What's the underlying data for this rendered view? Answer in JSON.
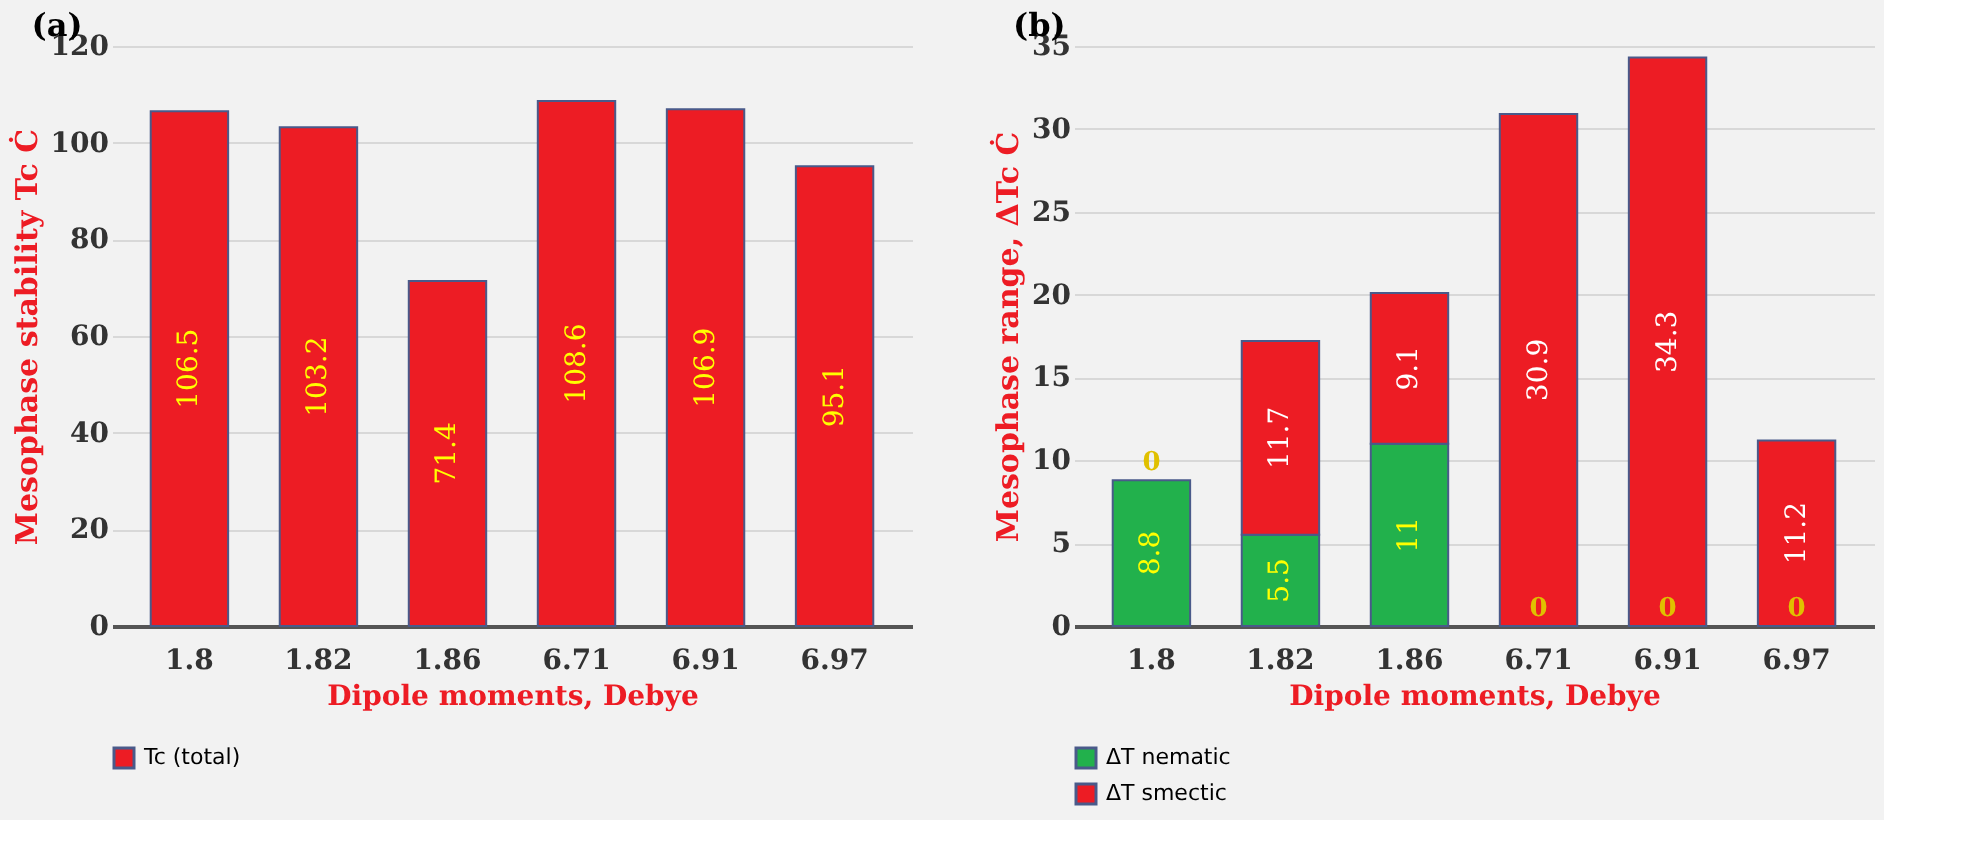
{
  "chart_data": [
    {
      "type": "bar",
      "title": "(a)",
      "xlabel": "Dipole moments,  Debye",
      "ylabel": "Mesophase stability Tc Ċ",
      "categories": [
        "1.8",
        "1.82",
        "1.86",
        "6.71",
        "6.91",
        "6.97"
      ],
      "series": [
        {
          "name": "Tc (total)",
          "color": "#ed1c24",
          "values": [
            106.5,
            103.2,
            71.4,
            108.6,
            106.9,
            95.1
          ]
        }
      ],
      "ylim": [
        0,
        120
      ],
      "yticks": [
        0,
        20,
        40,
        60,
        80,
        100,
        120
      ],
      "grid": "y",
      "legend": "bottom",
      "data_labels": true
    },
    {
      "type": "bar",
      "title": "(b)",
      "xlabel": "Dipole moments,  Debye",
      "ylabel": "Mesophase range, ΔTc Ċ",
      "categories": [
        "1.8",
        "1.82",
        "1.86",
        "6.71",
        "6.91",
        "6.97"
      ],
      "stacked": true,
      "series": [
        {
          "name": "ΔT nematic",
          "color": "#22b14c",
          "values": [
            8.8,
            5.5,
            11,
            0,
            0,
            0
          ],
          "value_labels": [
            "8.8",
            "5.5",
            "11",
            null,
            null,
            null
          ]
        },
        {
          "name": "ΔT smectic",
          "color": "#ed1c24",
          "values": [
            0,
            11.7,
            9.1,
            30.9,
            34.3,
            11.2
          ],
          "value_labels": [
            null,
            "11.7",
            "9.1",
            "30.9",
            "34.3",
            "11.2"
          ]
        }
      ],
      "annotations": [
        {
          "text": "0",
          "x": "1.8",
          "y": 8.8
        },
        {
          "text": "0",
          "x": "6.71",
          "y": 0
        },
        {
          "text": "0",
          "x": "6.91",
          "y": 0
        },
        {
          "text": "0",
          "x": "6.97",
          "y": 0
        }
      ],
      "ylim": [
        0,
        35
      ],
      "yticks": [
        0,
        5,
        10,
        15,
        20,
        25,
        30,
        35
      ],
      "grid": "y",
      "legend": "bottom"
    }
  ]
}
